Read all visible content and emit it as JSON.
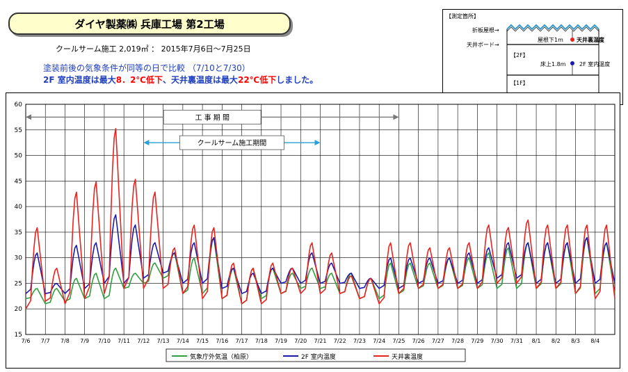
{
  "header": {
    "title": "ダイヤ製薬㈱ 兵庫工場 第2工場",
    "subtitle": "クールサーム施工 2,019㎡ ： 2015年7月6日～7月25日",
    "note1": "塗装前後の気象条件が同等の日で比較 （7/10と7/30）",
    "note2_parts": [
      "2F 室内温度は最大",
      "8．2℃低下",
      "、天井裏温度は最大",
      "22℃低下",
      "しました。"
    ]
  },
  "inset": {
    "heading": "【測定箇所】",
    "roof_label": "折板屋根→",
    "board_label": "天井ボード→",
    "roof_point": "屋根下1m",
    "roof_point_name": "天井裏温度",
    "floor2": "【2F】",
    "floor_point": "床上1.8m",
    "floor_point_name": "2F 室内温度",
    "floor1": "【1F】"
  },
  "colors": {
    "outdoor": "#2e9e3e",
    "indoor": "#1a1aa8",
    "ceiling": "#e8231e",
    "title_bg": "#ffffcc"
  },
  "chart_data": {
    "type": "line",
    "x": [
      "7/6",
      "7/7",
      "7/8",
      "7/9",
      "7/10",
      "7/11",
      "7/12",
      "7/13",
      "7/14",
      "7/15",
      "7/16",
      "7/17",
      "7/18",
      "7/19",
      "7/20",
      "7/21",
      "7/22",
      "7/23",
      "7/24",
      "7/25",
      "7/26",
      "7/27",
      "7/28",
      "7/29",
      "7/30",
      "7/31",
      "8/1",
      "8/2",
      "8/3",
      "8/4"
    ],
    "ylim": [
      15,
      60
    ],
    "yticks": [
      15,
      20,
      25,
      30,
      35,
      40,
      45,
      50,
      55,
      60
    ],
    "grid": true,
    "legend": "bottom",
    "annotations": [
      {
        "label": "工 事 期 間",
        "from": "7/6",
        "to": "7/25",
        "y": 57.5
      },
      {
        "label": "クールサーム施工期間",
        "from": "7/12",
        "to": "7/21",
        "y": 52.5
      }
    ],
    "series": [
      {
        "name": "気象庁外気温（柏原）",
        "key": "outdoor",
        "min": [
          22,
          21,
          21.5,
          22,
          22,
          24,
          25,
          26,
          23,
          23,
          22,
          21,
          22,
          23,
          24,
          24,
          23,
          22,
          22,
          23,
          24,
          24,
          24,
          24,
          24,
          24,
          24,
          24,
          23,
          23
        ],
        "max": [
          24,
          24,
          26,
          27,
          28,
          27,
          29,
          31,
          30,
          34,
          28,
          28,
          28,
          27,
          28,
          27,
          27,
          26,
          29,
          29,
          29,
          30,
          30,
          31,
          32,
          33,
          33,
          33,
          34,
          33
        ]
      },
      {
        "name": "2F 室内温度",
        "key": "indoor",
        "min": [
          23,
          23,
          23,
          24,
          25,
          25,
          26,
          27,
          25,
          25,
          24,
          23,
          23,
          25,
          25,
          25,
          25,
          24,
          24,
          24,
          25,
          25,
          25,
          25,
          26,
          26,
          25,
          25,
          25,
          25
        ],
        "max": [
          31,
          25,
          32.5,
          33,
          38.5,
          36.5,
          33,
          31,
          33,
          34,
          28,
          27,
          28,
          28,
          31,
          29,
          27,
          26,
          30,
          30,
          30,
          30,
          31,
          32,
          33,
          33,
          33,
          33,
          34,
          33
        ]
      },
      {
        "name": "天井裏温度",
        "key": "ceiling",
        "min": [
          20,
          21.5,
          21,
          22,
          23,
          24,
          24,
          24,
          23,
          22,
          22,
          21,
          21,
          23,
          23,
          23,
          23,
          22,
          21,
          23,
          24,
          24,
          24,
          24,
          25,
          25,
          24,
          24,
          23,
          22
        ],
        "max": [
          36,
          28,
          43,
          45,
          55.5,
          45.5,
          43,
          32,
          36.5,
          36,
          29,
          28,
          29,
          28,
          33,
          31,
          26.5,
          26,
          33,
          33,
          32,
          32,
          33,
          36.5,
          36,
          37.5,
          36.5,
          36.5,
          36.5,
          36.5
        ]
      }
    ]
  }
}
